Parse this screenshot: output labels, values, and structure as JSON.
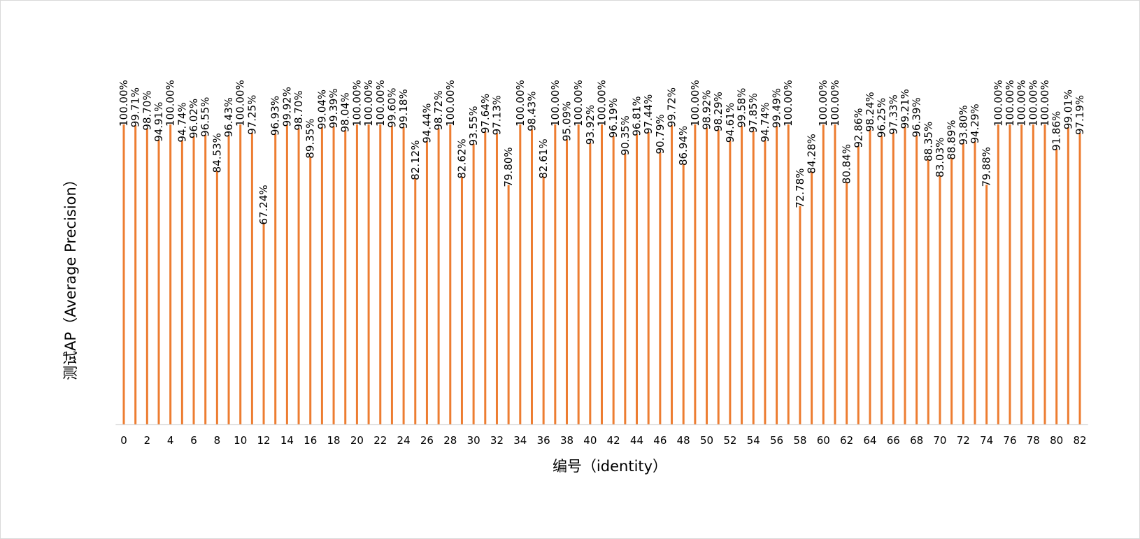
{
  "chart_data": {
    "type": "bar",
    "xlabel": "编号（identity）",
    "ylabel": "测试AP（Average Precision）",
    "ylim": [
      0,
      100
    ],
    "grid": false,
    "legend": "none",
    "bar_color": "#ED7D31",
    "categories": [
      0,
      1,
      2,
      3,
      4,
      5,
      6,
      7,
      8,
      9,
      10,
      11,
      12,
      13,
      14,
      15,
      16,
      17,
      18,
      19,
      20,
      21,
      22,
      23,
      24,
      25,
      26,
      27,
      28,
      29,
      30,
      31,
      32,
      33,
      34,
      35,
      36,
      37,
      38,
      39,
      40,
      41,
      42,
      43,
      44,
      45,
      46,
      47,
      48,
      49,
      50,
      51,
      52,
      53,
      54,
      55,
      56,
      57,
      58,
      59,
      60,
      61,
      62,
      63,
      64,
      65,
      66,
      67,
      68,
      69,
      70,
      71,
      72,
      73,
      74,
      75,
      76,
      77,
      78,
      79,
      80,
      81,
      82
    ],
    "x_tick_labels": [
      "0",
      "2",
      "4",
      "6",
      "8",
      "10",
      "12",
      "14",
      "16",
      "18",
      "20",
      "22",
      "24",
      "26",
      "28",
      "30",
      "32",
      "34",
      "36",
      "38",
      "40",
      "42",
      "44",
      "46",
      "48",
      "50",
      "52",
      "54",
      "56",
      "58",
      "60",
      "62",
      "64",
      "66",
      "68",
      "70",
      "72",
      "74",
      "76",
      "78",
      "80",
      "82"
    ],
    "values": [
      100.0,
      99.71,
      98.7,
      94.91,
      100.0,
      94.74,
      96.02,
      96.55,
      84.53,
      96.43,
      100.0,
      97.25,
      67.24,
      96.93,
      99.92,
      98.7,
      89.35,
      99.04,
      99.39,
      98.04,
      100.0,
      100.0,
      100.0,
      99.6,
      99.18,
      82.12,
      94.44,
      98.72,
      100.0,
      82.62,
      93.55,
      97.64,
      97.13,
      79.8,
      100.0,
      98.43,
      82.61,
      100.0,
      95.09,
      100.0,
      93.92,
      100.0,
      96.19,
      90.35,
      96.81,
      97.44,
      90.79,
      99.72,
      86.94,
      100.0,
      98.92,
      98.29,
      94.61,
      99.58,
      97.85,
      94.74,
      99.49,
      100.0,
      72.78,
      84.28,
      100.0,
      100.0,
      80.84,
      92.86,
      98.24,
      96.25,
      97.33,
      99.21,
      96.39,
      88.35,
      83.03,
      88.89,
      93.8,
      94.29,
      79.88,
      100.0,
      100.0,
      100.0,
      100.0,
      100.0,
      91.86,
      99.01,
      97.19
    ],
    "data_labels": [
      "100.00%",
      "99.71%",
      "98.70%",
      "94.91%",
      "100.00%",
      "94.74%",
      "96.02%",
      "96.55%",
      "84.53%",
      "96.43%",
      "100.00%",
      "97.25%",
      "67.24%",
      "96.93%",
      "99.92%",
      "98.70%",
      "89.35%",
      "99.04%",
      "99.39%",
      "98.04%",
      "100.00%",
      "100.00%",
      "100.00%",
      "99.60%",
      "99.18%",
      "82.12%",
      "94.44%",
      "98.72%",
      "100.00%",
      "82.62%",
      "93.55%",
      "97.64%",
      "97.13%",
      "79.80%",
      "100.00%",
      "98.43%",
      "82.61%",
      "100.00%",
      "95.09%",
      "100.00%",
      "93.92%",
      "100.00%",
      "96.19%",
      "90.35%",
      "96.81%",
      "97.44%",
      "90.79%",
      "99.72%",
      "86.94%",
      "100.00%",
      "98.92%",
      "98.29%",
      "94.61%",
      "99.58%",
      "97.85%",
      "94.74%",
      "99.49%",
      "100.00%",
      "72.78%",
      "84.28%",
      "100.00%",
      "100.00%",
      "80.84%",
      "92.86%",
      "98.24%",
      "96.25%",
      "97.33%",
      "99.21%",
      "96.39%",
      "88.35%",
      "83.03%",
      "88.89%",
      "93.80%",
      "94.29%",
      "79.88%",
      "100.00%",
      "100.00%",
      "100.00%",
      "100.00%",
      "100.00%",
      "91.86%",
      "99.01%",
      "97.19%"
    ]
  }
}
